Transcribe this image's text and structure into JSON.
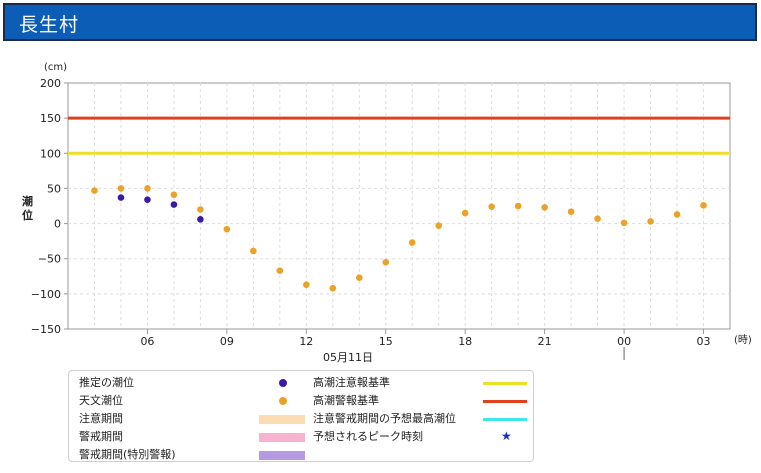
{
  "page": {
    "title": "長生村"
  },
  "chart_data": {
    "type": "scatter",
    "y_unit": "(cm)",
    "ylabel": "潮位",
    "x_unit": "(時)",
    "date_label": "05月11日",
    "ylim": [
      -150,
      200
    ],
    "yticks": [
      "200",
      "150",
      "100",
      "50",
      "0",
      "−50",
      "−100",
      "−150"
    ],
    "ytick_values": [
      200,
      150,
      100,
      50,
      0,
      -50,
      -100,
      -150
    ],
    "x_range_hours": [
      3,
      28
    ],
    "xticks": [
      {
        "hour": 6,
        "label": "06"
      },
      {
        "hour": 9,
        "label": "09"
      },
      {
        "hour": 12,
        "label": "12"
      },
      {
        "hour": 15,
        "label": "15"
      },
      {
        "hour": 18,
        "label": "18"
      },
      {
        "hour": 21,
        "label": "21"
      },
      {
        "hour": 24,
        "label": "00"
      },
      {
        "hour": 27,
        "label": "03"
      }
    ],
    "grid": true,
    "thresholds": [
      {
        "name": "高潮警報基準",
        "value": 150,
        "color": "#e0401e"
      },
      {
        "name": "高潮注意報基準",
        "value": 100,
        "color": "#ede02a"
      }
    ],
    "series": [
      {
        "name": "天文潮位",
        "color": "#eba227",
        "x": [
          4,
          5,
          6,
          7,
          8,
          9,
          10,
          11,
          12,
          13,
          14,
          15,
          16,
          17,
          18,
          19,
          20,
          21,
          22,
          23,
          24,
          25,
          26,
          27
        ],
        "values": [
          47,
          50,
          50,
          41,
          20,
          -8,
          -39,
          -67,
          -87,
          -92,
          -77,
          -55,
          -27,
          -3,
          15,
          24,
          25,
          23,
          17,
          7,
          1,
          3,
          13,
          26
        ]
      },
      {
        "name": "推定の潮位",
        "color": "#3a1ba6",
        "x": [
          5,
          6,
          7,
          8
        ],
        "values": [
          37,
          34,
          27,
          6
        ]
      }
    ],
    "legend_placement": "bottom"
  },
  "legend": {
    "items": [
      {
        "label": "推定の潮位",
        "kind": "dot",
        "color": "#3a1ba6"
      },
      {
        "label": "天文潮位",
        "kind": "dot",
        "color": "#eba227"
      },
      {
        "label": "注意期間",
        "kind": "band",
        "color": "#fbdcb3"
      },
      {
        "label": "警戒期間",
        "kind": "band",
        "color": "#f5b3cf"
      },
      {
        "label": "警戒期間(特別警報)",
        "kind": "band",
        "color": "#b39ae2"
      },
      {
        "label": "高潮注意報基準",
        "kind": "line",
        "color": "#ede02a"
      },
      {
        "label": "高潮警報基準",
        "kind": "line",
        "color": "#e0401e"
      },
      {
        "label": "注意警戒期間の予想最高潮位",
        "kind": "line",
        "color": "#3fe6ea"
      },
      {
        "label": "予想されるピーク時刻",
        "kind": "star",
        "color": "#1a2fb8",
        "symbol": "★"
      }
    ]
  }
}
